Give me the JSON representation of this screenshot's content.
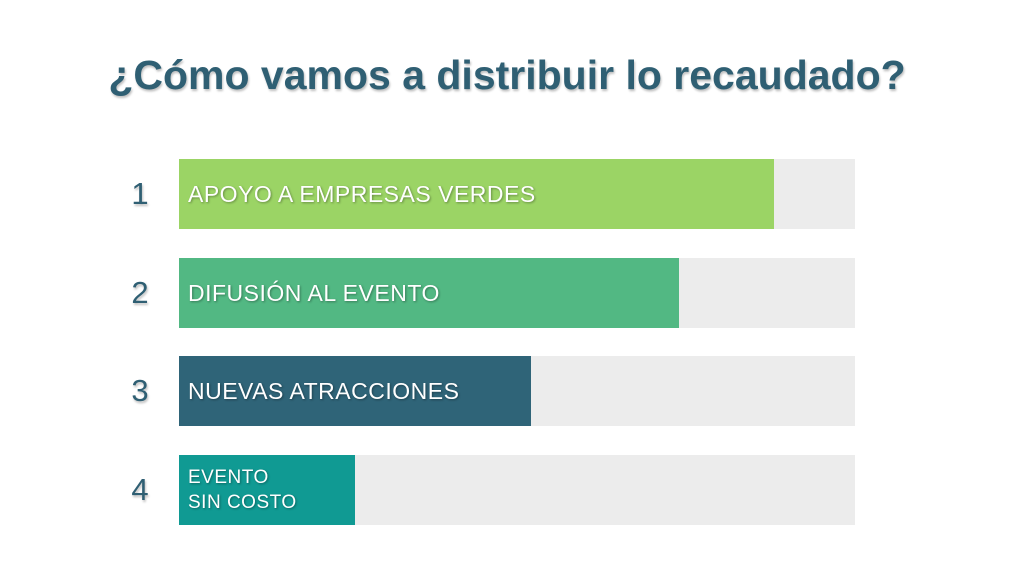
{
  "title": "¿Cómo vamos a distribuir lo recaudado?",
  "chart_data": {
    "type": "bar",
    "orientation": "horizontal",
    "title": "¿Cómo vamos a distribuir lo recaudado?",
    "xlim": [
      0,
      100
    ],
    "grid": false,
    "legend": "none",
    "items": [
      {
        "rank": "1",
        "label": "APOYO A EMPRESAS VERDES",
        "value": 88,
        "color": "#9bd465"
      },
      {
        "rank": "2",
        "label": "DIFUSIÓN AL EVENTO",
        "value": 74,
        "color": "#52b883"
      },
      {
        "rank": "3",
        "label": "NUEVAS ATRACCIONES",
        "value": 52,
        "color": "#2f6478"
      },
      {
        "rank": "4",
        "label": "EVENTO\nSIN COSTO",
        "value": 26,
        "color": "#109a93"
      }
    ],
    "track_color": "#ececec"
  }
}
